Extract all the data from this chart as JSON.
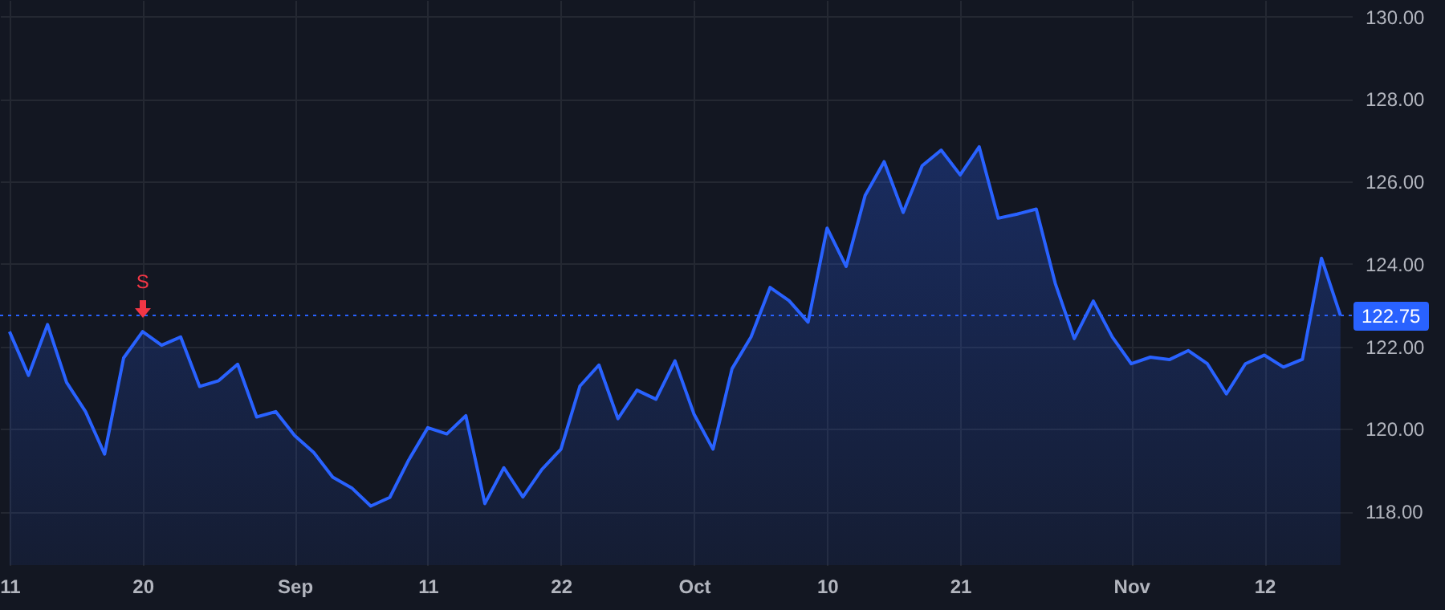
{
  "chart_data": {
    "type": "area",
    "categories": [
      "11",
      null,
      null,
      null,
      null,
      null,
      null,
      "20",
      null,
      null,
      null,
      null,
      null,
      null,
      null,
      "Sep",
      null,
      null,
      null,
      null,
      null,
      null,
      "11",
      null,
      null,
      null,
      null,
      null,
      null,
      "22",
      null,
      null,
      null,
      null,
      null,
      null,
      "Oct",
      null,
      null,
      null,
      null,
      null,
      null,
      "10",
      null,
      null,
      null,
      null,
      null,
      null,
      "21",
      null,
      null,
      null,
      null,
      null,
      null,
      null,
      null,
      "Nov",
      null,
      null,
      null,
      null,
      null,
      null,
      "12",
      null,
      null,
      null,
      null
    ],
    "series": [
      {
        "color": "#2962ff",
        "values": [
          122.36,
          121.3,
          122.53,
          121.13,
          120.42,
          119.39,
          121.72,
          122.36,
          122.03,
          122.23,
          121.03,
          121.17,
          121.57,
          120.29,
          120.42,
          119.84,
          119.43,
          118.83,
          118.57,
          118.13,
          118.34,
          119.25,
          120.03,
          119.88,
          120.32,
          118.19,
          119.06,
          118.35,
          119.02,
          119.51,
          121.04,
          121.55,
          120.25,
          120.94,
          120.72,
          121.65,
          120.36,
          119.51,
          121.46,
          122.23,
          123.43,
          123.11,
          122.59,
          124.87,
          123.94,
          125.66,
          126.48,
          125.25,
          126.38,
          126.76,
          126.16,
          126.84,
          125.11,
          125.21,
          125.33,
          123.53,
          122.19,
          123.1,
          122.23,
          121.58,
          121.74,
          121.68,
          121.9,
          121.58,
          120.85,
          121.58,
          121.79,
          121.5,
          121.69,
          124.14,
          122.75
        ]
      }
    ],
    "ylim": [
      116.7,
      130.4
    ],
    "yticks": [
      {
        "value": 118,
        "label": "118.00"
      },
      {
        "value": 120,
        "label": "120.00"
      },
      {
        "value": 122,
        "label": "122.00"
      },
      {
        "value": 124,
        "label": "124.00"
      },
      {
        "value": 126,
        "label": "126.00"
      },
      {
        "value": 128,
        "label": "128.00"
      },
      {
        "value": 130,
        "label": "130.00"
      }
    ],
    "grid": true,
    "ref_lines": [
      {
        "axis": "y",
        "value": 122.75,
        "label": "122.75",
        "color": "#2962ff",
        "line_style": "dotted"
      }
    ],
    "annotations": [
      {
        "text": "S",
        "x": "20",
        "y": 122.36
      }
    ]
  }
}
